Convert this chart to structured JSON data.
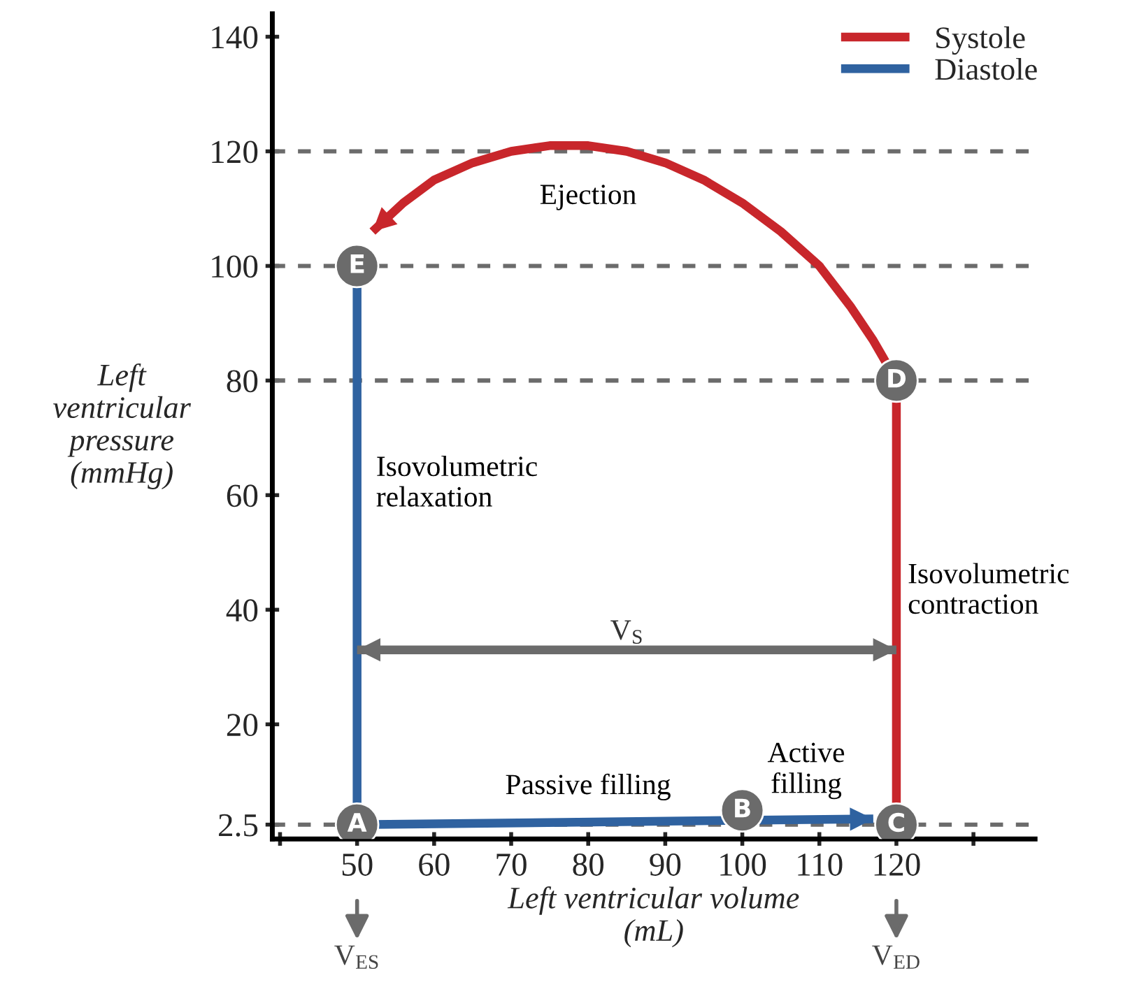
{
  "chart_data": {
    "type": "line",
    "xlabel": "Left ventricular volume\n(mL)",
    "ylabel": "Left\nventricular\npressure\n(mmHg)",
    "xlim": [
      39,
      138
    ],
    "ylim": [
      0,
      144
    ],
    "xticks": [
      {
        "value": 40,
        "label": null
      },
      50,
      60,
      70,
      80,
      90,
      100,
      110,
      120,
      {
        "value": 130,
        "label": null
      }
    ],
    "yticks": [
      2.5,
      20,
      40,
      60,
      80,
      100,
      120,
      140
    ],
    "series": [
      {
        "name": "Systole",
        "color": "#c8262b",
        "x": [
          120,
          120,
          117,
          114,
          110,
          105,
          100,
          95,
          90,
          85,
          80,
          75,
          70,
          65,
          60,
          56,
          52
        ],
        "values": [
          2.5,
          80,
          87,
          93,
          100,
          106,
          111,
          115,
          118,
          120,
          121,
          121,
          120,
          118,
          115,
          111,
          106
        ]
      },
      {
        "name": "Diastole",
        "color": "#2f62a0",
        "x": [
          50,
          50,
          117
        ],
        "values": [
          100,
          2.5,
          3.5
        ]
      },
      {
        "color": "#6b6b6b",
        "x": [
          50,
          120
        ],
        "values": [
          33,
          33
        ]
      },
      {
        "type": "scatter",
        "color": "#6b6b6b",
        "x": [
          50,
          100,
          120,
          120,
          50
        ],
        "values": [
          2.5,
          5,
          2.5,
          80,
          100
        ],
        "value_labels": [
          "A",
          "B",
          "C",
          "D",
          "E"
        ]
      }
    ],
    "ref_lines": [
      {
        "axis": "y",
        "value": 120,
        "color": "#6b6b6b",
        "line_style": "dashed"
      },
      {
        "axis": "y",
        "value": 100,
        "color": "#6b6b6b",
        "line_style": "dashed"
      },
      {
        "axis": "y",
        "value": 80,
        "color": "#6b6b6b",
        "line_style": "dashed"
      },
      {
        "axis": "y",
        "value": 2.5,
        "color": "#6b6b6b",
        "line_style": "dashed"
      }
    ],
    "annotations": [
      "Ejection",
      "Isovolumetric\nrelaxation",
      "Isovolumetric\ncontraction",
      "Passive filling",
      "Active\nfilling",
      "V$_{S}$",
      {
        "text": "V$_{ES}$",
        "x": 50
      },
      {
        "text": "V$_{ED}$",
        "x": 120
      }
    ],
    "legend": "top right",
    "grid": false
  }
}
